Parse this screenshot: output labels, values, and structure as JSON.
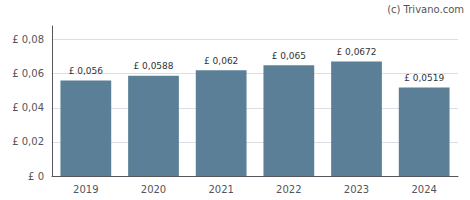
{
  "chart_data": {
    "type": "bar",
    "categories": [
      "2019",
      "2020",
      "2021",
      "2022",
      "2023",
      "2024"
    ],
    "values": [
      0.056,
      0.0588,
      0.062,
      0.065,
      0.0672,
      0.0519
    ],
    "value_labels": [
      "£ 0,056",
      "£ 0,0588",
      "£ 0,062",
      "£ 0,065",
      "£ 0,0672",
      "£ 0,0519"
    ],
    "data_labels": true,
    "color": "#5b7f96",
    "ylim": [
      0,
      0.088
    ],
    "yticks": [
      {
        "value": 0,
        "label": "£ 0"
      },
      {
        "value": 0.02,
        "label": "£ 0,02"
      },
      {
        "value": 0.04,
        "label": "£ 0,04"
      },
      {
        "value": 0.06,
        "label": "£ 0,06"
      },
      {
        "value": 0.08,
        "label": "£ 0,08"
      }
    ],
    "grid": true,
    "annotations": [
      "(c) Trivano.com"
    ]
  }
}
